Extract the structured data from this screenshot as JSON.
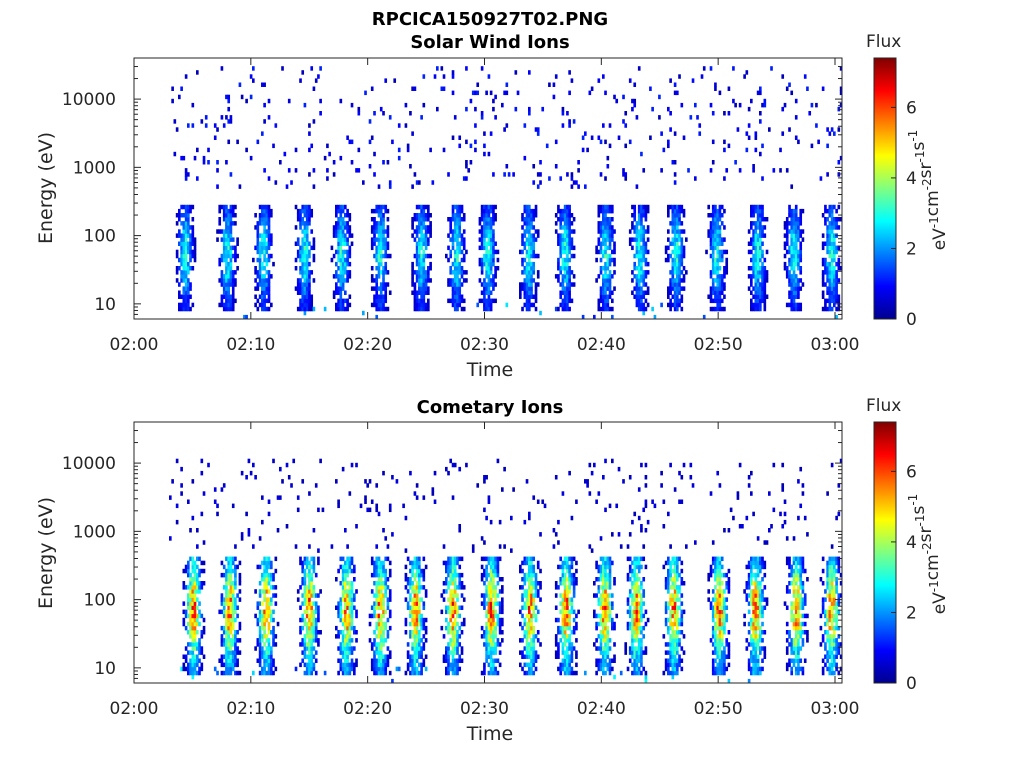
{
  "figure": {
    "title": "RPCICA150927T02.PNG"
  },
  "colormap": {
    "name": "jet",
    "stops": [
      "#00008f",
      "#0000ff",
      "#0080ff",
      "#00ffff",
      "#80ff80",
      "#ffff00",
      "#ff8000",
      "#ff0000",
      "#800000"
    ]
  },
  "chart_data": [
    {
      "type": "heatmap",
      "title": "Solar Wind Ions",
      "xlabel": "Time",
      "ylabel": "Energy (eV)",
      "x_ticks": [
        "02:00",
        "02:10",
        "02:20",
        "02:30",
        "02:40",
        "02:50",
        "03:00"
      ],
      "xlim_minutes": [
        0,
        60.6
      ],
      "y_scale": "log",
      "ylim": [
        6,
        40000
      ],
      "y_ticks": [
        10,
        100,
        1000,
        10000
      ],
      "y_tick_labels": [
        "10",
        "100",
        "1000",
        "10000"
      ],
      "colorbar": {
        "title": "Flux",
        "label": "eV-1cm-2sr-1s-1",
        "range": [
          0,
          7.4
        ],
        "ticks": [
          0,
          2,
          4,
          6
        ],
        "tick_labels": [
          "0",
          "2",
          "4",
          "6"
        ]
      },
      "data_start_minute": 3,
      "burst_minutes": [
        4.3,
        7.9,
        11,
        14.5,
        17.7,
        21,
        24.5,
        27.5,
        30.2,
        33.7,
        36.8,
        40.3,
        43.2,
        46.3,
        49.8,
        53.3,
        56.4,
        59.6
      ],
      "burst_energy_range_eV": [
        10,
        300
      ],
      "burst_peak_flux": 3.0,
      "background_flux": 1.0,
      "background_energy_range_eV": [
        500,
        30000
      ]
    },
    {
      "type": "heatmap",
      "title": "Cometary Ions",
      "xlabel": "Time",
      "ylabel": "Energy (eV)",
      "x_ticks": [
        "02:00",
        "02:10",
        "02:20",
        "02:30",
        "02:40",
        "02:50",
        "03:00"
      ],
      "xlim_minutes": [
        0,
        60.6
      ],
      "y_scale": "log",
      "ylim": [
        6,
        40000
      ],
      "y_ticks": [
        10,
        100,
        1000,
        10000
      ],
      "y_tick_labels": [
        "10",
        "100",
        "1000",
        "10000"
      ],
      "colorbar": {
        "title": "Flux",
        "label": "eV-1cm-2sr-1s-1",
        "range": [
          0,
          7.4
        ],
        "ticks": [
          0,
          2,
          4,
          6
        ],
        "tick_labels": [
          "0",
          "2",
          "4",
          "6"
        ]
      },
      "data_start_minute": 3,
      "burst_minutes": [
        5.0,
        8.1,
        11.2,
        14.9,
        18.1,
        21.0,
        24.0,
        27.2,
        30.5,
        33.8,
        36.9,
        40.2,
        42.9,
        46.1,
        50.0,
        53.1,
        56.6,
        59.6
      ],
      "burst_energy_range_eV": [
        10,
        400
      ],
      "burst_peak_energy_eV": 70,
      "burst_peak_flux": 5.8,
      "background_flux": 0.6,
      "background_energy_range_eV": [
        500,
        12000
      ]
    }
  ]
}
